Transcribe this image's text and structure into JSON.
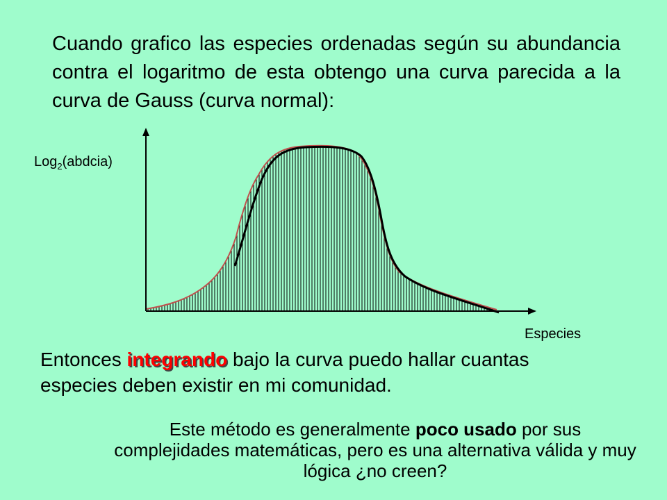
{
  "intro_text": "Cuando grafico las especies ordenadas según su abundancia contra el logaritmo de esta obtengo una curva parecida a la curva de Gauss (curva normal):",
  "figure": {
    "y_label_main": "Log",
    "y_label_sub": "2",
    "y_label_rest": "(abdcia)",
    "x_label": "Especies"
  },
  "integration": {
    "before": "Entonces ",
    "highlight": "integrando",
    "after": " bajo la curva puedo hallar cuantas especies deben existir en mi comunidad."
  },
  "closing": {
    "part1": "Este método es generalmente ",
    "bold": "poco usado",
    "part2": " por sus complejidades matemáticas, pero es una alternativa válida y muy lógica ¿no creen?"
  },
  "colors": {
    "background": "#9ffccc",
    "highlight": "#ff0000",
    "reference_curve": "#c0504d"
  }
}
